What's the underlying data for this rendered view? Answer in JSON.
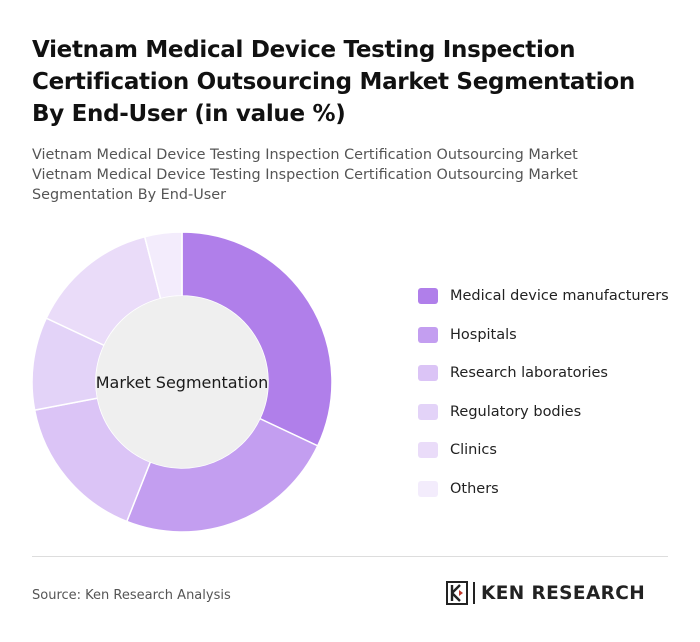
{
  "header": {
    "title": "Vietnam Medical Device Testing Inspection Certification Outsourcing Market Segmentation By End-User (in value %)",
    "subtitle_line1": "Vietnam Medical Device Testing Inspection Certification Outsourcing Market",
    "subtitle_line2": "Vietnam Medical Device Testing Inspection Certification Outsourcing Market Segmentation By End-User"
  },
  "chart_data": {
    "type": "pie",
    "donut": true,
    "center_label": "Market Segmentation",
    "categories": [
      "Medical device manufacturers",
      "Hospitals",
      "Research laboratories",
      "Regulatory bodies",
      "Clinics",
      "Others"
    ],
    "values": [
      32,
      24,
      16,
      10,
      14,
      4
    ],
    "colors": [
      "#b07fea",
      "#c39ef0",
      "#dbc4f6",
      "#e3d3f8",
      "#eadcf9",
      "#f3ecfc"
    ],
    "legend_position": "right"
  },
  "footer": {
    "source": "Source: Ken Research Analysis",
    "logo_text": "KEN RESEARCH"
  }
}
